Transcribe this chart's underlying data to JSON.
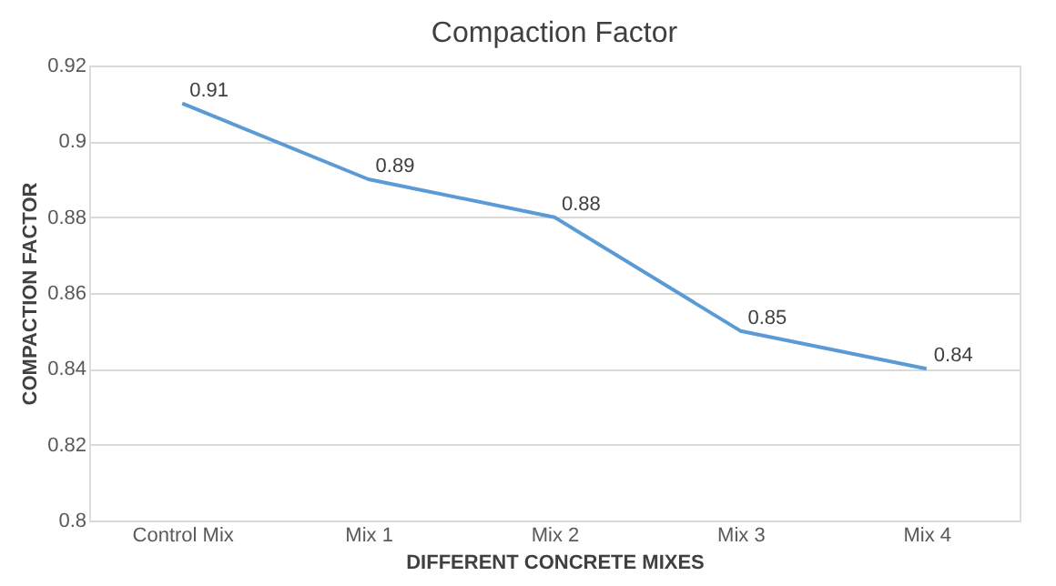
{
  "chart_data": {
    "type": "line",
    "title": "Compaction Factor",
    "xlabel": "DIFFERENT CONCRETE MIXES",
    "ylabel": "COMPACTION FACTOR",
    "categories": [
      "Control Mix",
      "Mix 1",
      "Mix 2",
      "Mix 3",
      "Mix 4"
    ],
    "series": [
      {
        "color": "#5b9bd5",
        "values": [
          0.91,
          0.89,
          0.88,
          0.85,
          0.84
        ]
      }
    ],
    "ylim": [
      0.8,
      0.92
    ],
    "yticks": [
      0.8,
      0.82,
      0.84,
      0.86,
      0.88,
      0.9,
      0.92
    ],
    "grid": "y",
    "data_labels": true,
    "marker": "none",
    "line_style": "solid"
  }
}
